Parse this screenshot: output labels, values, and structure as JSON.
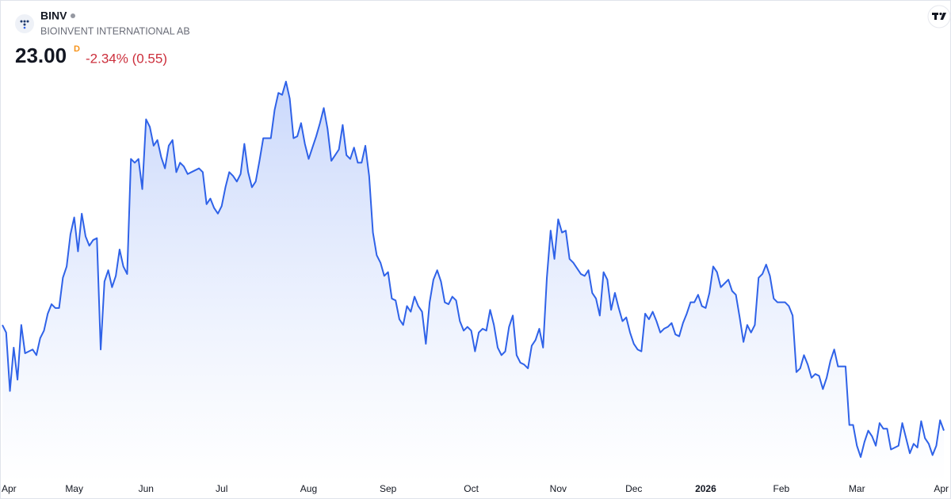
{
  "header": {
    "symbol": "BINV",
    "name": "BIOINVENT INTERNATIONAL AB",
    "price": "23.00",
    "interval": "D",
    "change": "-2.34% (0.55)"
  },
  "chart_data": {
    "type": "line",
    "color": "#2f62e8",
    "fill": "#c7d6fb",
    "values": [
      28.6,
      28.2,
      25.1,
      27.4,
      25.7,
      28.6,
      27.1,
      27.2,
      27.3,
      27.0,
      27.9,
      28.3,
      29.2,
      29.7,
      29.5,
      29.5,
      31.1,
      31.7,
      33.4,
      34.3,
      32.5,
      34.5,
      33.3,
      32.8,
      33.1,
      33.2,
      27.3,
      30.9,
      31.5,
      30.6,
      31.2,
      32.6,
      31.7,
      31.3,
      37.4,
      37.2,
      37.4,
      35.8,
      39.5,
      39.1,
      38.1,
      38.4,
      37.5,
      36.9,
      38.1,
      38.4,
      36.7,
      37.2,
      37.0,
      36.6,
      36.7,
      36.8,
      36.9,
      36.7,
      35.0,
      35.3,
      34.8,
      34.5,
      34.9,
      35.9,
      36.7,
      36.5,
      36.2,
      36.6,
      38.2,
      36.7,
      35.9,
      36.2,
      37.3,
      38.5,
      38.5,
      38.5,
      40.0,
      40.9,
      40.8,
      41.5,
      40.6,
      38.5,
      38.6,
      39.3,
      38.2,
      37.4,
      38.0,
      38.6,
      39.3,
      40.1,
      39.0,
      37.3,
      37.6,
      37.9,
      39.2,
      37.6,
      37.4,
      38.0,
      37.2,
      37.2,
      38.1,
      36.5,
      33.5,
      32.3,
      31.9,
      31.2,
      31.4,
      30.0,
      29.9,
      28.9,
      28.6,
      29.6,
      29.3,
      30.1,
      29.6,
      29.3,
      27.6,
      29.8,
      31.0,
      31.5,
      30.9,
      29.8,
      29.7,
      30.1,
      29.9,
      28.8,
      28.3,
      28.5,
      28.3,
      27.2,
      28.2,
      28.4,
      28.3,
      29.4,
      28.6,
      27.4,
      27.0,
      27.2,
      28.5,
      29.1,
      27.0,
      26.6,
      26.5,
      26.3,
      27.5,
      27.8,
      28.4,
      27.4,
      31.1,
      33.6,
      32.1,
      34.2,
      33.5,
      33.6,
      32.1,
      31.9,
      31.6,
      31.3,
      31.2,
      31.5,
      30.3,
      30.0,
      29.1,
      31.4,
      31.0,
      29.4,
      30.3,
      29.5,
      28.8,
      29.0,
      28.2,
      27.6,
      27.3,
      27.2,
      29.2,
      28.9,
      29.3,
      28.8,
      28.2,
      28.4,
      28.5,
      28.7,
      28.1,
      28.0,
      28.7,
      29.2,
      29.8,
      29.8,
      30.2,
      29.6,
      29.5,
      30.3,
      31.7,
      31.4,
      30.6,
      30.8,
      31.0,
      30.4,
      30.2,
      29.0,
      27.7,
      28.6,
      28.2,
      28.6,
      31.1,
      31.3,
      31.8,
      31.2,
      30.0,
      29.8,
      29.8,
      29.8,
      29.6,
      29.1,
      26.1,
      26.3,
      27.0,
      26.5,
      25.8,
      26.0,
      25.9,
      25.2,
      25.8,
      26.7,
      27.3,
      26.4,
      26.4,
      26.4,
      23.3,
      23.3,
      22.2,
      21.6,
      22.4,
      23.0,
      22.7,
      22.2,
      23.4,
      23.1,
      23.1,
      22.0,
      22.1,
      22.2,
      23.4,
      22.6,
      21.8,
      22.3,
      22.1,
      23.5,
      22.6,
      22.3,
      21.7,
      22.2,
      23.55,
      23.0
    ],
    "xticks": [
      {
        "value": 0,
        "label": "Apr"
      },
      {
        "value": 19,
        "label": "May"
      },
      {
        "value": 38,
        "label": "Jun"
      },
      {
        "value": 58,
        "label": "Jul"
      },
      {
        "value": 81,
        "label": "Aug"
      },
      {
        "value": 102,
        "label": "Sep"
      },
      {
        "value": 124,
        "label": "Oct"
      },
      {
        "value": 147,
        "label": "Nov"
      },
      {
        "value": 167,
        "label": "Dec"
      },
      {
        "value": 186,
        "label": "2026"
      },
      {
        "value": 206,
        "label": "Feb"
      },
      {
        "value": 226,
        "label": "Mar"
      },
      {
        "value": 248,
        "label": "Apr"
      }
    ]
  }
}
